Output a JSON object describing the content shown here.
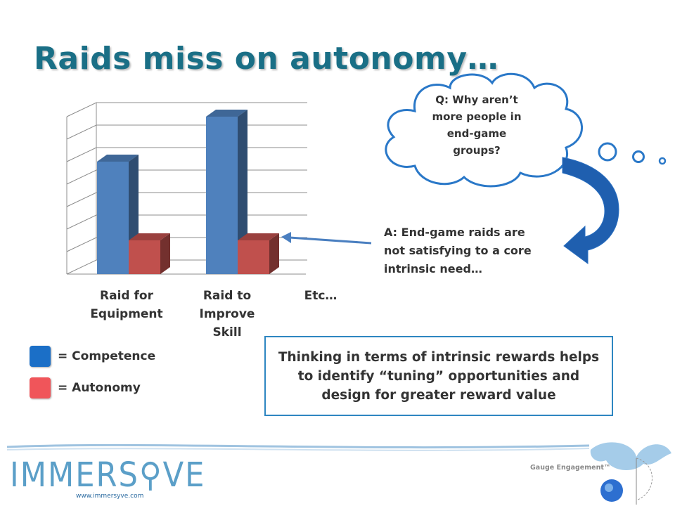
{
  "title": "Raids miss on autonomy…",
  "chart_data": {
    "type": "bar",
    "categories": [
      "Raid for Equipment",
      "Raid to Improve Skill",
      "Etc…"
    ],
    "category_labels": [
      [
        "Raid for",
        "Equipment"
      ],
      [
        "Raid to",
        "Improve",
        "Skill"
      ],
      [
        "Etc…"
      ]
    ],
    "series": [
      {
        "name": "Competence",
        "values": [
          5,
          7,
          null
        ],
        "color": "#4f81bd"
      },
      {
        "name": "Autonomy",
        "values": [
          1.5,
          1.5,
          null
        ],
        "color": "#c0504d"
      }
    ],
    "ylim": [
      0,
      7
    ],
    "grid": true,
    "three_d": true
  },
  "legend": [
    {
      "label": "= Competence",
      "color": "#1b6fc7"
    },
    {
      "label": "= Autonomy",
      "color": "#f0555a"
    }
  ],
  "thought": {
    "question_lines": [
      "Q: Why aren’t",
      "more people in",
      "end-game",
      "groups?"
    ]
  },
  "answer_lines": [
    "A: End-game raids are",
    "not satisfying to a core",
    "intrinsic need…"
  ],
  "callout_lines": [
    "Thinking in terms of intrinsic rewards helps",
    "to identify “tuning” opportunities and",
    "design for greater reward value"
  ],
  "footer": {
    "logo": "IMMERS⚲VE",
    "url": "www.immersyve.com",
    "gauge_label": "Gauge Engagement™"
  },
  "colors": {
    "title": "#1a6f86",
    "callout_border": "#2e86c1",
    "cloud_border": "#2a78c8",
    "arrow": "#1f5faf"
  }
}
